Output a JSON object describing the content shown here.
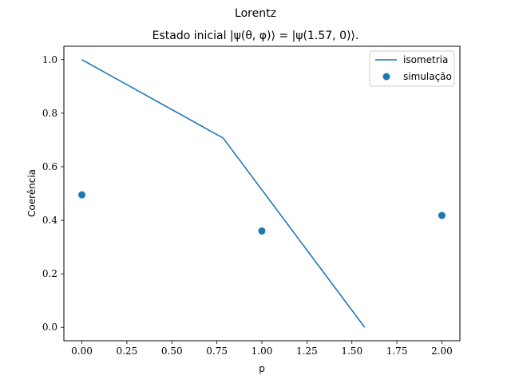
{
  "chart_data": {
    "type": "line",
    "suptitle": "Lorentz",
    "title": "Estado inicial |ψ(θ, φ)⟩ = |ψ(1.57, 0)⟩.",
    "xlabel": "p",
    "ylabel": "Coerência",
    "xlim": [
      -0.1,
      2.1
    ],
    "ylim": [
      -0.05,
      1.05
    ],
    "xticks": [
      0.0,
      0.25,
      0.5,
      0.75,
      1.0,
      1.25,
      1.5,
      1.75,
      2.0
    ],
    "xtick_labels": [
      "0.00",
      "0.25",
      "0.50",
      "0.75",
      "1.00",
      "1.25",
      "1.50",
      "1.75",
      "2.00"
    ],
    "yticks": [
      0.0,
      0.2,
      0.4,
      0.6,
      0.8,
      1.0
    ],
    "ytick_labels": [
      "0.0",
      "0.2",
      "0.4",
      "0.6",
      "0.8",
      "1.0"
    ],
    "grid": false,
    "legend_position": "top-right",
    "series": [
      {
        "name": "isometria",
        "kind": "line",
        "color": "#1f77b4",
        "x": [
          0.0,
          0.785,
          1.571
        ],
        "y": [
          1.0,
          0.707,
          0.0
        ]
      },
      {
        "name": "simulação",
        "kind": "scatter",
        "color": "#1f77b4",
        "x": [
          0.0,
          1.0,
          2.0
        ],
        "y": [
          0.495,
          0.36,
          0.418
        ]
      }
    ]
  }
}
